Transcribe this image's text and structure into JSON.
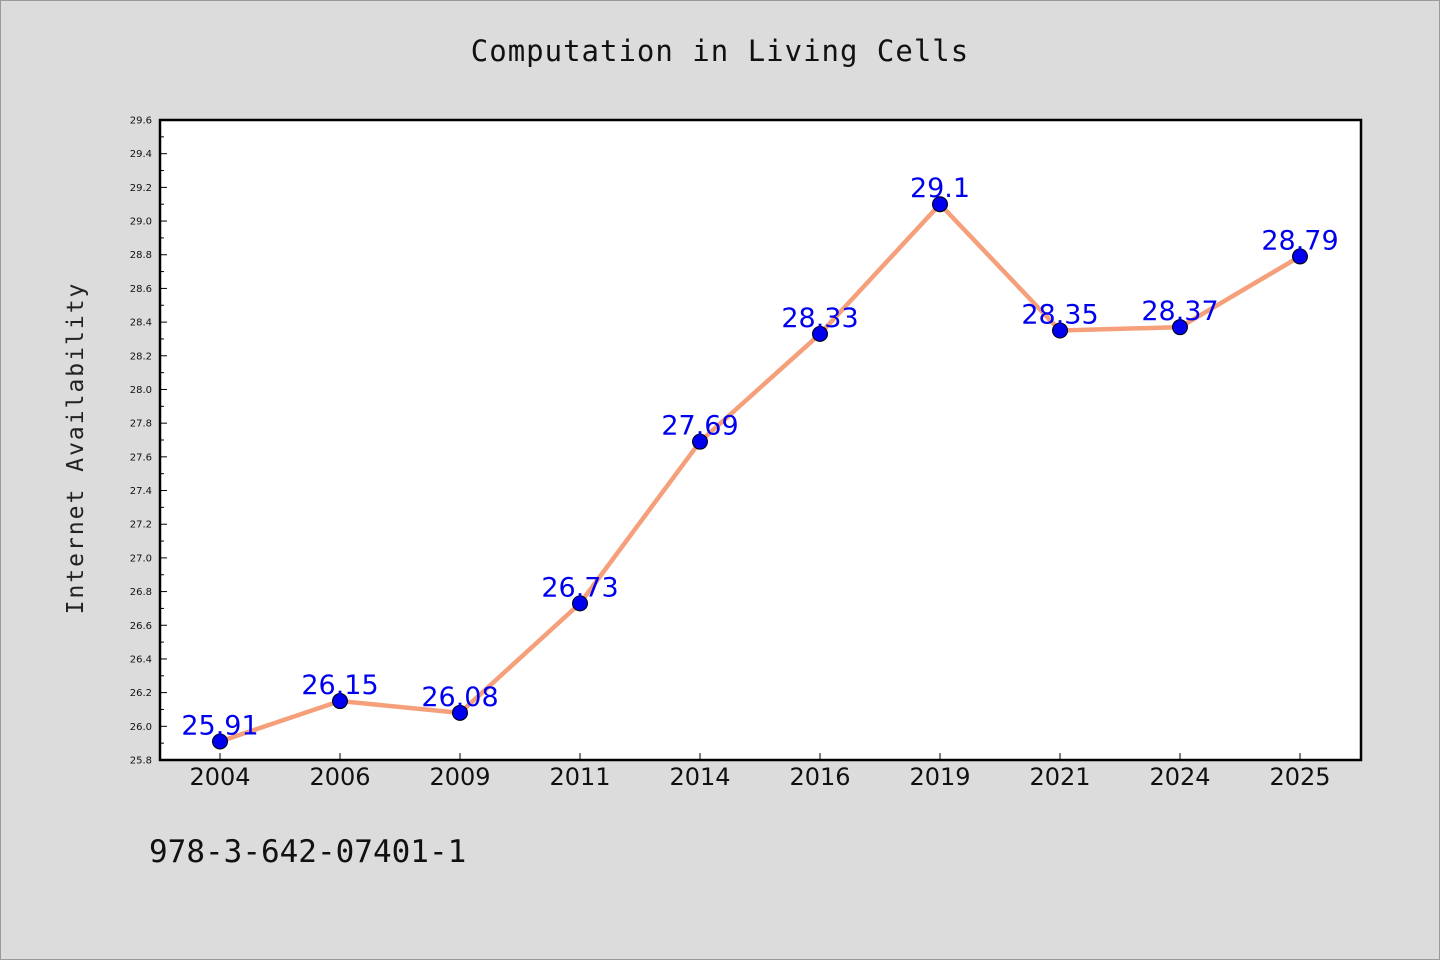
{
  "chart_data": {
    "type": "line",
    "title": "Computation in Living Cells",
    "xlabel": "",
    "ylabel": "Internet Availability",
    "categories": [
      "2004",
      "2006",
      "2009",
      "2011",
      "2014",
      "2016",
      "2019",
      "2021",
      "2024",
      "2025"
    ],
    "series": [
      {
        "values": [
          25.91,
          26.15,
          26.08,
          26.73,
          27.69,
          28.33,
          29.1,
          28.35,
          28.37,
          28.79
        ],
        "line_color": "#f5a07a",
        "marker_color": "#0000ee"
      }
    ],
    "data_labels": [
      "25.91",
      "26.15",
      "26.08",
      "26.73",
      "27.69",
      "28.33",
      "29.1",
      "28.35",
      "28.37",
      "28.79"
    ],
    "ylim": [
      25.8,
      29.6
    ],
    "yticks": [
      "25.8",
      "26.0",
      "26.2",
      "26.4",
      "26.6",
      "26.8",
      "27.0",
      "27.2",
      "27.4",
      "27.6",
      "27.8",
      "28.0",
      "28.2",
      "28.4",
      "28.6",
      "28.8",
      "29.0",
      "29.2",
      "29.4",
      "29.6"
    ],
    "grid": false,
    "legend": "none"
  },
  "footer": {
    "code": "978-3-642-07401-1"
  }
}
